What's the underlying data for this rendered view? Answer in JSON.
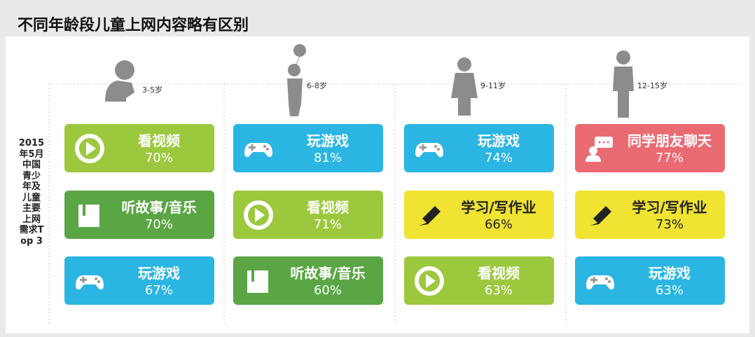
{
  "header": {
    "title": "不同年龄段儿童上网内容略有区别"
  },
  "side_label": "2015年5月中国青少年及儿童主要上网需求Top 3",
  "columns": [
    {
      "age": "3-5岁",
      "items": [
        {
          "label": "看视频",
          "percent": "70%",
          "color": "#9cc83e"
        },
        {
          "label": "听故事/音乐",
          "percent": "70%",
          "color": "#5aa544"
        },
        {
          "label": "玩游戏",
          "percent": "67%",
          "color": "#2bb5e3"
        }
      ]
    },
    {
      "age": "6-8岁",
      "items": [
        {
          "label": "玩游戏",
          "percent": "81%",
          "color": "#2bb5e3"
        },
        {
          "label": "看视频",
          "percent": "71%",
          "color": "#9cc83e"
        },
        {
          "label": "听故事/音乐",
          "percent": "60%",
          "color": "#5aa544"
        }
      ]
    },
    {
      "age": "9-11岁",
      "items": [
        {
          "label": "玩游戏",
          "percent": "74%",
          "color": "#2bb5e3"
        },
        {
          "label": "学习/写作业",
          "percent": "66%",
          "color": "#f0e332"
        },
        {
          "label": "看视频",
          "percent": "63%",
          "color": "#9cc83e"
        }
      ]
    },
    {
      "age": "12-15岁",
      "items": [
        {
          "label": "同学朋友聊天",
          "percent": "77%",
          "color": "#ea6a72"
        },
        {
          "label": "学习/写作业",
          "percent": "73%",
          "color": "#f0e332"
        },
        {
          "label": "玩游戏",
          "percent": "63%",
          "color": "#2bb5e3"
        }
      ]
    }
  ]
}
